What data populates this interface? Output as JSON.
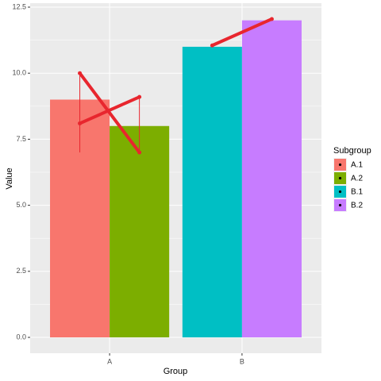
{
  "chart_data": {
    "type": "bar",
    "x_label": "Group",
    "y_label": "Value",
    "legend_title": "Subgroup",
    "categories": [
      "A",
      "B"
    ],
    "series": [
      {
        "name": "A.1",
        "color": "#F8766D",
        "values": [
          9,
          null
        ],
        "error_low": [
          7,
          null
        ],
        "error_high": [
          10,
          null
        ]
      },
      {
        "name": "A.2",
        "color": "#7CAE00",
        "values": [
          8,
          null
        ],
        "error_low": [
          7,
          null
        ],
        "error_high": [
          9.1,
          null
        ]
      },
      {
        "name": "B.1",
        "color": "#00BFC4",
        "values": [
          null,
          11
        ],
        "error_low": [
          null,
          null
        ],
        "error_high": [
          null,
          null
        ]
      },
      {
        "name": "B.2",
        "color": "#C77CFF",
        "values": [
          null,
          12
        ],
        "error_low": [
          null,
          null
        ],
        "error_high": [
          null,
          null
        ]
      }
    ],
    "lines": [
      {
        "x": [
          "A.1",
          "A.2"
        ],
        "values": [
          10,
          7
        ],
        "color": "#E8262E"
      },
      {
        "x": [
          "A.1",
          "A.2"
        ],
        "values": [
          8.1,
          9.1
        ],
        "color": "#E8262E"
      },
      {
        "x": [
          "B.1",
          "B.2"
        ],
        "values": [
          11.05,
          12.05
        ],
        "color": "#E8262E"
      }
    ],
    "ylim": [
      -0.6,
      12.65
    ],
    "yticks": [
      {
        "value": 0,
        "label": "0.0"
      },
      {
        "value": 2.5,
        "label": "2.5"
      },
      {
        "value": 5,
        "label": "5.0"
      },
      {
        "value": 7.5,
        "label": "7.5"
      },
      {
        "value": 10,
        "label": "10.0"
      },
      {
        "value": 12.5,
        "label": "12.5"
      }
    ],
    "minor_yticks": [
      1.25,
      3.75,
      6.25,
      8.75,
      11.25
    ],
    "grid": true,
    "legend": "right"
  }
}
